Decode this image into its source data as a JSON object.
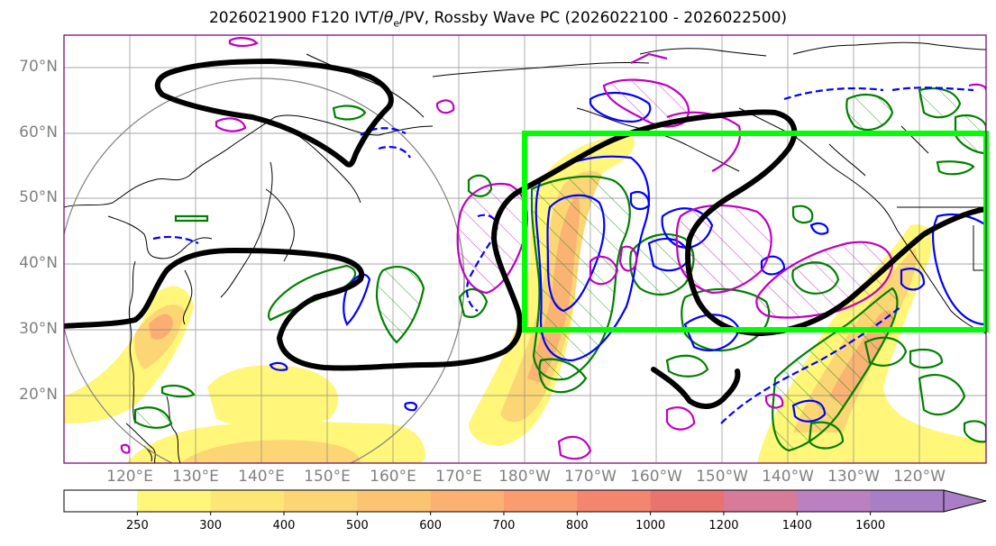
{
  "title": {
    "part1": "2026021900 F120 IVT/",
    "theta": "θ",
    "sub_e": "e",
    "part2": "/PV, Rossby Wave PC (2026022100 - 2026022500)"
  },
  "lat_labels": [
    "70°N",
    "60°N",
    "50°N",
    "40°N",
    "30°N",
    "20°N"
  ],
  "lon_labels": [
    "120°E",
    "130°E",
    "140°E",
    "150°E",
    "160°E",
    "170°E",
    "180°W",
    "170°W",
    "160°W",
    "150°W",
    "140°W",
    "130°W",
    "120°W"
  ],
  "colorbar": {
    "ticks": [
      "250",
      "300",
      "400",
      "500",
      "600",
      "700",
      "800",
      "1000",
      "1200",
      "1400",
      "1600"
    ],
    "colors": [
      "#ffffff",
      "#fff67a",
      "#fde676",
      "#fcd575",
      "#fbc473",
      "#fbb172",
      "#f99d71",
      "#f48670",
      "#e9736f",
      "#d87b9a",
      "#bb80c0",
      "#a87fc6"
    ]
  },
  "colors": {
    "ivt_low": "#fff67a",
    "ivt_mid": "#fcd575",
    "ivt_high": "#f99d71",
    "wave_contour": "#000000",
    "highlight_box": "#00ff00",
    "pv_green": "#008000",
    "pv_blue": "#0000ff",
    "pv_magenta": "#c000c0",
    "coastline": "#000000",
    "grid": "#808080"
  }
}
